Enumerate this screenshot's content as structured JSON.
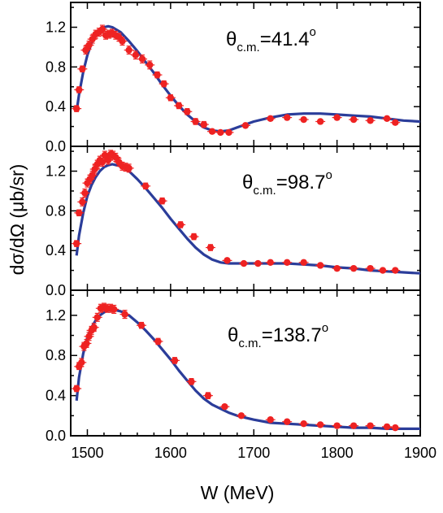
{
  "chart_data": {
    "type": "scatter",
    "xlabel": "W (MeV)",
    "ylabel": "dσ/dΩ (μb/sr)",
    "xlim": [
      1480,
      1900
    ],
    "xticks": [
      1500,
      1600,
      1700,
      1800,
      1900
    ],
    "ylim": [
      0.0,
      1.45
    ],
    "yticks": [
      0.0,
      0.4,
      0.8,
      1.2
    ],
    "grid": false,
    "colors": {
      "data": "#ee2222",
      "model": "#2b3d9a"
    },
    "panels": [
      {
        "annotation": {
          "symbol": "θ",
          "subscript": "c.m.",
          "value": "=41.4",
          "superscript": "o"
        },
        "series": [
          {
            "type": "scatter",
            "x": [
              1487,
              1490,
              1494,
              1498,
              1502,
              1506,
              1510,
              1514,
              1518,
              1522,
              1526,
              1530,
              1534,
              1538,
              1542,
              1550,
              1558,
              1566,
              1575,
              1584,
              1592,
              1600,
              1610,
              1620,
              1630,
              1640,
              1650,
              1660,
              1670,
              1690,
              1720,
              1740,
              1760,
              1780,
              1800,
              1820,
              1840,
              1860,
              1870
            ],
            "y": [
              0.38,
              0.57,
              0.78,
              0.97,
              1.02,
              1.08,
              1.13,
              1.15,
              1.18,
              1.12,
              1.13,
              1.14,
              1.12,
              1.1,
              1.06,
              0.97,
              0.92,
              0.88,
              0.82,
              0.72,
              0.63,
              0.49,
              0.41,
              0.35,
              0.25,
              0.22,
              0.15,
              0.14,
              0.14,
              0.21,
              0.28,
              0.29,
              0.27,
              0.25,
              0.29,
              0.27,
              0.26,
              0.28,
              0.24
            ],
            "yerr": [
              0.03,
              0.03,
              0.03,
              0.04,
              0.04,
              0.04,
              0.04,
              0.04,
              0.04,
              0.04,
              0.04,
              0.04,
              0.04,
              0.04,
              0.04,
              0.04,
              0.04,
              0.04,
              0.04,
              0.03,
              0.03,
              0.03,
              0.03,
              0.03,
              0.03,
              0.03,
              0.02,
              0.02,
              0.02,
              0.02,
              0.02,
              0.02,
              0.02,
              0.02,
              0.02,
              0.02,
              0.02,
              0.02,
              0.02
            ]
          },
          {
            "type": "line",
            "x": [
              1487,
              1490,
              1495,
              1500,
              1505,
              1510,
              1515,
              1520,
              1525,
              1530,
              1540,
              1550,
              1560,
              1570,
              1580,
              1590,
              1600,
              1610,
              1620,
              1630,
              1640,
              1650,
              1660,
              1670,
              1680,
              1690,
              1700,
              1720,
              1740,
              1760,
              1780,
              1800,
              1820,
              1840,
              1860,
              1880,
              1900
            ],
            "y": [
              0.35,
              0.52,
              0.75,
              0.92,
              1.04,
              1.12,
              1.17,
              1.2,
              1.21,
              1.2,
              1.15,
              1.06,
              0.96,
              0.85,
              0.74,
              0.62,
              0.51,
              0.41,
              0.32,
              0.25,
              0.19,
              0.16,
              0.15,
              0.16,
              0.19,
              0.22,
              0.25,
              0.29,
              0.32,
              0.33,
              0.33,
              0.32,
              0.31,
              0.3,
              0.28,
              0.26,
              0.25
            ]
          }
        ]
      },
      {
        "annotation": {
          "symbol": "θ",
          "subscript": "c.m.",
          "value": "=98.7",
          "superscript": "o"
        },
        "series": [
          {
            "type": "scatter",
            "x": [
              1487,
              1490,
              1494,
              1497,
              1500,
              1503,
              1506,
              1509,
              1512,
              1515,
              1518,
              1521,
              1525,
              1528,
              1531,
              1534,
              1538,
              1542,
              1546,
              1550,
              1570,
              1590,
              1612,
              1628,
              1648,
              1668,
              1688,
              1705,
              1720,
              1740,
              1760,
              1780,
              1800,
              1820,
              1840,
              1855,
              1870
            ],
            "y": [
              0.47,
              0.78,
              0.89,
              0.98,
              1.08,
              1.12,
              1.16,
              1.22,
              1.27,
              1.31,
              1.29,
              1.36,
              1.31,
              1.37,
              1.36,
              1.34,
              1.29,
              1.25,
              1.24,
              1.23,
              1.05,
              0.9,
              0.66,
              0.54,
              0.43,
              0.3,
              0.27,
              0.27,
              0.28,
              0.28,
              0.28,
              0.25,
              0.22,
              0.22,
              0.22,
              0.2,
              0.2
            ],
            "yerr": [
              0.03,
              0.03,
              0.04,
              0.04,
              0.04,
              0.04,
              0.04,
              0.04,
              0.04,
              0.04,
              0.04,
              0.04,
              0.04,
              0.04,
              0.04,
              0.04,
              0.04,
              0.04,
              0.04,
              0.04,
              0.03,
              0.03,
              0.03,
              0.03,
              0.03,
              0.02,
              0.02,
              0.02,
              0.02,
              0.02,
              0.02,
              0.02,
              0.02,
              0.02,
              0.02,
              0.02,
              0.02
            ]
          },
          {
            "type": "line",
            "x": [
              1487,
              1490,
              1495,
              1500,
              1505,
              1510,
              1515,
              1520,
              1525,
              1530,
              1535,
              1540,
              1550,
              1560,
              1570,
              1580,
              1590,
              1600,
              1610,
              1620,
              1630,
              1640,
              1650,
              1660,
              1670,
              1680,
              1690,
              1700,
              1720,
              1740,
              1760,
              1780,
              1800,
              1820,
              1840,
              1860,
              1880,
              1900
            ],
            "y": [
              0.35,
              0.55,
              0.78,
              0.95,
              1.06,
              1.14,
              1.2,
              1.24,
              1.26,
              1.27,
              1.26,
              1.25,
              1.2,
              1.12,
              1.03,
              0.93,
              0.83,
              0.72,
              0.62,
              0.52,
              0.43,
              0.36,
              0.31,
              0.28,
              0.27,
              0.27,
              0.27,
              0.27,
              0.27,
              0.27,
              0.26,
              0.25,
              0.23,
              0.22,
              0.2,
              0.19,
              0.18,
              0.17
            ]
          }
        ]
      },
      {
        "annotation": {
          "symbol": "θ",
          "subscript": "c.m.",
          "value": "=138.7",
          "superscript": "o"
        },
        "series": [
          {
            "type": "scatter",
            "x": [
              1487,
              1490,
              1493,
              1496,
              1499,
              1502,
              1505,
              1508,
              1512,
              1516,
              1520,
              1524,
              1528,
              1532,
              1545,
              1565,
              1585,
              1605,
              1625,
              1645,
              1665,
              1685,
              1720,
              1740,
              1760,
              1780,
              1800,
              1820,
              1840,
              1860,
              1870
            ],
            "y": [
              0.47,
              0.69,
              0.73,
              0.89,
              0.92,
              0.99,
              1.05,
              1.08,
              1.18,
              1.27,
              1.28,
              1.27,
              1.27,
              1.26,
              1.21,
              1.1,
              0.94,
              0.75,
              0.54,
              0.4,
              0.29,
              0.2,
              0.16,
              0.14,
              0.12,
              0.11,
              0.1,
              0.1,
              0.1,
              0.09,
              0.08
            ],
            "yerr": [
              0.03,
              0.03,
              0.04,
              0.04,
              0.04,
              0.04,
              0.04,
              0.04,
              0.04,
              0.04,
              0.04,
              0.04,
              0.04,
              0.04,
              0.04,
              0.03,
              0.03,
              0.03,
              0.03,
              0.03,
              0.02,
              0.02,
              0.02,
              0.02,
              0.02,
              0.02,
              0.02,
              0.02,
              0.02,
              0.02,
              0.02
            ]
          },
          {
            "type": "line",
            "x": [
              1487,
              1490,
              1495,
              1500,
              1505,
              1510,
              1515,
              1520,
              1525,
              1530,
              1535,
              1540,
              1550,
              1560,
              1570,
              1580,
              1590,
              1600,
              1610,
              1620,
              1630,
              1640,
              1650,
              1660,
              1670,
              1680,
              1690,
              1700,
              1720,
              1740,
              1760,
              1780,
              1800,
              1820,
              1840,
              1860,
              1880,
              1900
            ],
            "y": [
              0.35,
              0.58,
              0.82,
              0.98,
              1.08,
              1.15,
              1.2,
              1.23,
              1.25,
              1.25,
              1.25,
              1.24,
              1.2,
              1.13,
              1.05,
              0.96,
              0.86,
              0.76,
              0.65,
              0.55,
              0.45,
              0.37,
              0.31,
              0.27,
              0.23,
              0.2,
              0.18,
              0.16,
              0.13,
              0.12,
              0.11,
              0.1,
              0.09,
              0.08,
              0.08,
              0.07,
              0.07,
              0.07
            ]
          }
        ]
      }
    ]
  }
}
